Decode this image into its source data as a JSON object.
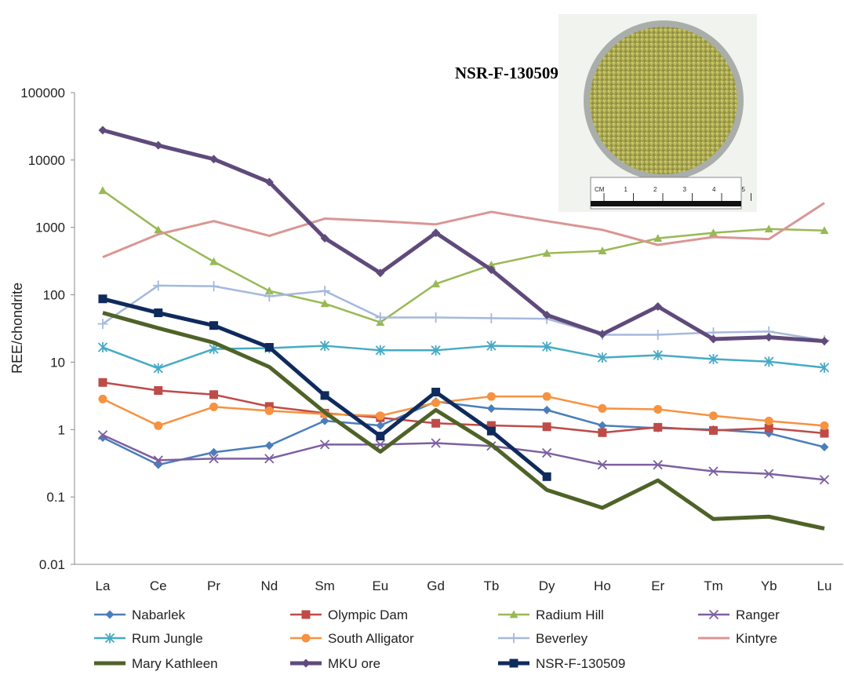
{
  "chart_data": {
    "type": "line",
    "y_label": "REE/chondrite",
    "log_y": true,
    "grid": false,
    "legend": "bottom",
    "ylim": [
      0.01,
      100000
    ],
    "yticks": [
      0.01,
      0.1,
      1,
      10,
      100,
      1000,
      10000,
      100000
    ],
    "categories": [
      "La",
      "Ce",
      "Pr",
      "Nd",
      "Sm",
      "Eu",
      "Gd",
      "Tb",
      "Dy",
      "Ho",
      "Er",
      "Tm",
      "Yb",
      "Lu"
    ],
    "inset_label": "NSR-F-130509",
    "ruler_labels": [
      "CM",
      "1",
      "2",
      "3",
      "4",
      "5"
    ],
    "series": [
      {
        "name": "Nabarlek",
        "color": "#4a7ebb",
        "marker": "diamond",
        "line_width": 2.5,
        "values": [
          0.76,
          0.3,
          0.46,
          0.58,
          1.35,
          1.15,
          2.6,
          2.05,
          1.95,
          1.15,
          1.05,
          1.0,
          0.88,
          0.55
        ]
      },
      {
        "name": "Olympic Dam",
        "color": "#be4b48",
        "marker": "square",
        "line_width": 2.5,
        "values": [
          5.0,
          3.8,
          3.3,
          2.2,
          1.75,
          1.5,
          1.24,
          1.15,
          1.1,
          0.9,
          1.08,
          0.97,
          1.05,
          0.88
        ]
      },
      {
        "name": "Radium Hill",
        "color": "#98b954",
        "marker": "triangle",
        "line_width": 2.5,
        "values": [
          3520,
          920,
          310,
          114,
          74,
          39,
          145,
          277,
          413,
          448,
          688,
          830,
          948,
          898
        ]
      },
      {
        "name": "Ranger",
        "color": "#7d60a0",
        "marker": "x",
        "line_width": 2.5,
        "values": [
          0.83,
          0.35,
          0.37,
          0.37,
          0.6,
          0.6,
          0.63,
          0.57,
          0.45,
          0.3,
          0.3,
          0.24,
          0.22,
          0.18
        ]
      },
      {
        "name": "Rum Jungle",
        "color": "#46aac5",
        "marker": "star",
        "line_width": 2.5,
        "values": [
          16.6,
          8.1,
          15.7,
          16.2,
          17.5,
          15,
          15,
          17.5,
          17,
          11.7,
          12.7,
          11.1,
          10.2,
          8.3
        ]
      },
      {
        "name": "South Alligator",
        "color": "#f69240",
        "marker": "circle",
        "line_width": 2.5,
        "values": [
          2.84,
          1.14,
          2.17,
          1.9,
          1.7,
          1.6,
          2.5,
          3.1,
          3.1,
          2.06,
          2.0,
          1.6,
          1.34,
          1.14
        ]
      },
      {
        "name": "Beverley",
        "color": "#a5b9dc",
        "marker": "plus",
        "line_width": 2.5,
        "values": [
          37,
          137,
          134,
          95,
          114,
          46,
          46,
          45,
          44,
          25.5,
          25.5,
          27.6,
          28.5,
          21
        ]
      },
      {
        "name": "Kintyre",
        "color": "#d99694",
        "marker": "none",
        "line_width": 3,
        "values": [
          362,
          790,
          1240,
          750,
          1350,
          1240,
          1110,
          1700,
          1240,
          920,
          550,
          720,
          670,
          2300
        ]
      },
      {
        "name": "Mary Kathleen",
        "color": "#4f6228",
        "marker": "none",
        "line_width": 5,
        "values": [
          54,
          32,
          19.5,
          8.5,
          1.8,
          0.47,
          1.95,
          0.6,
          0.127,
          0.069,
          0.176,
          0.047,
          0.051,
          0.034
        ]
      },
      {
        "name": "MKU ore",
        "color": "#604a7b",
        "marker": "diamond",
        "line_width": 5,
        "values": [
          27700,
          16500,
          10300,
          4700,
          690,
          211,
          830,
          235,
          50,
          26,
          67,
          22,
          23.5,
          20.5
        ]
      },
      {
        "name": "NSR-F-130509",
        "color": "#0f2a5c",
        "marker": "square",
        "line_width": 5,
        "values": [
          87,
          54,
          35,
          16.6,
          3.2,
          0.8,
          3.6,
          0.95,
          0.2,
          null,
          null,
          null,
          null,
          null
        ]
      }
    ]
  }
}
